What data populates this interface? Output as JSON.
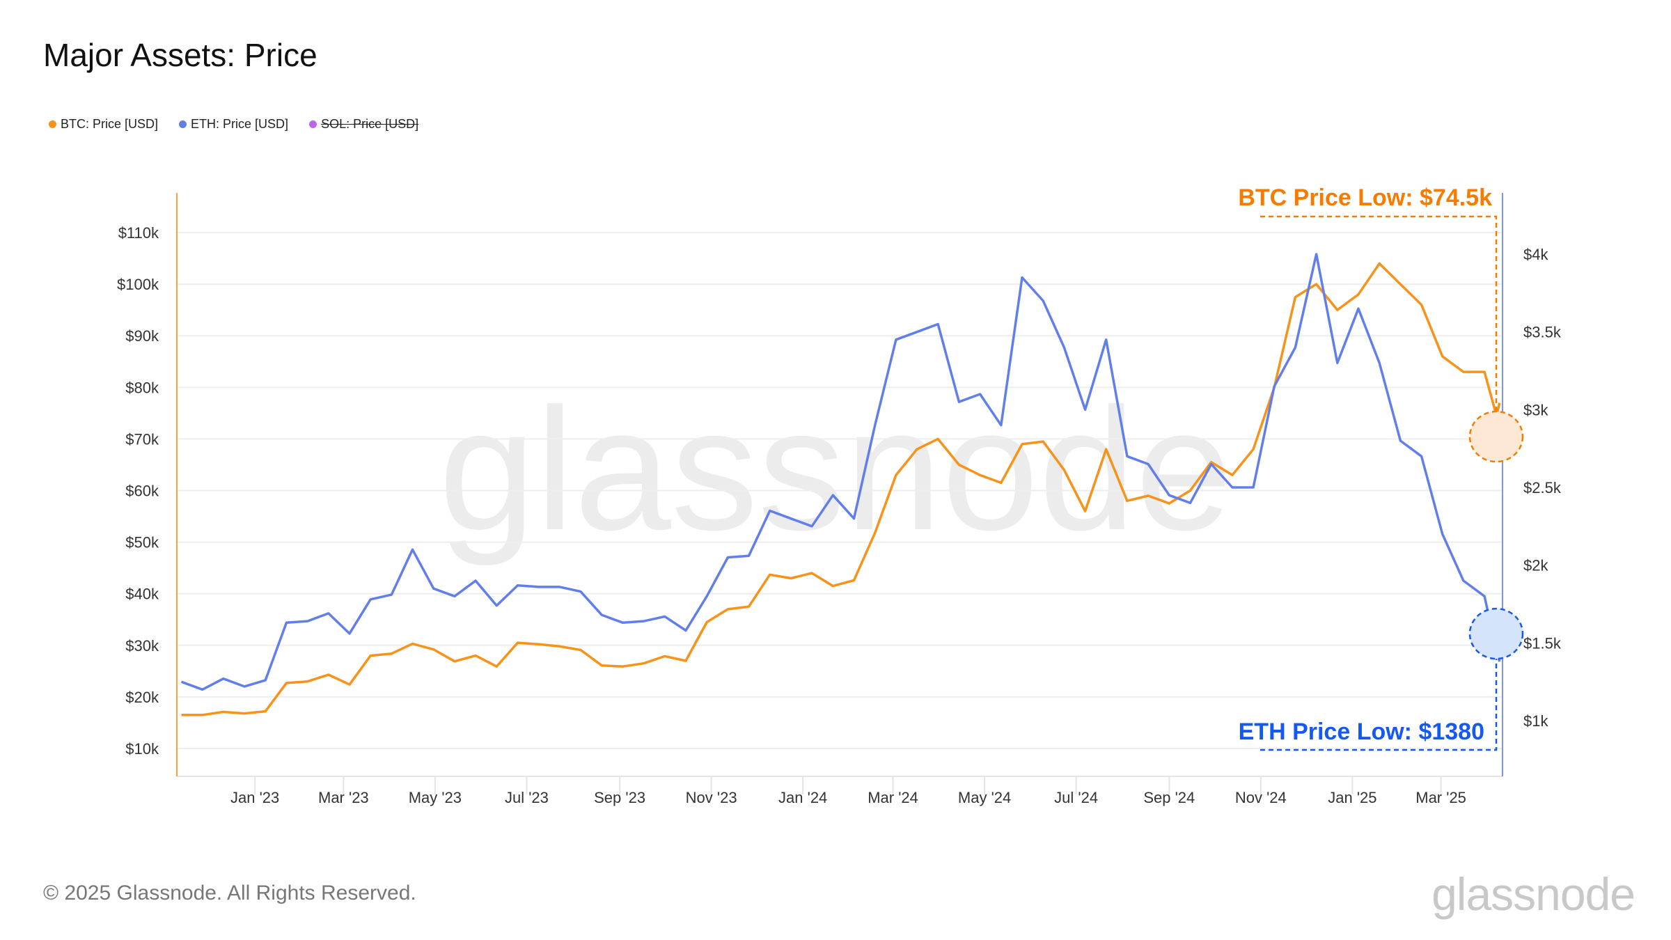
{
  "title": "Major Assets: Price",
  "legend": [
    {
      "label": "BTC: Price [USD]",
      "color": "#F7931A",
      "hidden": false
    },
    {
      "label": "ETH: Price [USD]",
      "color": "#627EEA",
      "hidden": false
    },
    {
      "label": "SOL: Price [USD]",
      "color": "#C063E8",
      "hidden": true
    }
  ],
  "watermark": "glassnode",
  "footer": "© 2025 Glassnode. All Rights Reserved.",
  "logo": "glassnode",
  "chart_data": {
    "type": "line",
    "title": "Major Assets: Price",
    "grid": true,
    "legend_position": "top-left",
    "x_range": [
      "2022-11-10",
      "2025-04-11"
    ],
    "x_ticks": [
      "Jan '23",
      "Mar '23",
      "May '23",
      "Jul '23",
      "Sep '23",
      "Nov '23",
      "Jan '24",
      "Mar '24",
      "May '24",
      "Jul '24",
      "Sep '24",
      "Nov '24",
      "Jan '25",
      "Mar '25"
    ],
    "x_tick_dates": [
      "2023-01-01",
      "2023-03-01",
      "2023-05-01",
      "2023-07-01",
      "2023-09-01",
      "2023-11-01",
      "2024-01-01",
      "2024-03-01",
      "2024-05-01",
      "2024-07-01",
      "2024-09-01",
      "2024-11-01",
      "2025-01-01",
      "2025-03-01"
    ],
    "y_left": {
      "range": [
        6000,
        114000
      ],
      "ticks": [
        10000,
        20000,
        30000,
        40000,
        50000,
        60000,
        70000,
        80000,
        90000,
        100000,
        110000
      ],
      "tick_labels": [
        "$10k",
        "$20k",
        "$30k",
        "$40k",
        "$50k",
        "$60k",
        "$70k",
        "$80k",
        "$90k",
        "$100k",
        "$110k"
      ],
      "color": "#F7931A"
    },
    "y_right": {
      "range": [
        750,
        4300
      ],
      "ticks": [
        1000,
        1500,
        2000,
        2500,
        3000,
        3500,
        4000
      ],
      "tick_labels": [
        "$1k",
        "$1.5k",
        "$2k",
        "$2.5k",
        "$3k",
        "$3.5k",
        "$4k"
      ],
      "color": "#627EEA"
    },
    "dates": [
      "2022-11-13",
      "2022-11-27",
      "2022-12-11",
      "2022-12-25",
      "2023-01-08",
      "2023-01-22",
      "2023-02-05",
      "2023-02-19",
      "2023-03-05",
      "2023-03-19",
      "2023-04-02",
      "2023-04-16",
      "2023-04-30",
      "2023-05-14",
      "2023-05-28",
      "2023-06-11",
      "2023-06-25",
      "2023-07-09",
      "2023-07-23",
      "2023-08-06",
      "2023-08-20",
      "2023-09-03",
      "2023-09-17",
      "2023-10-01",
      "2023-10-15",
      "2023-10-29",
      "2023-11-12",
      "2023-11-26",
      "2023-12-10",
      "2023-12-24",
      "2024-01-07",
      "2024-01-21",
      "2024-02-04",
      "2024-02-18",
      "2024-03-03",
      "2024-03-17",
      "2024-03-31",
      "2024-04-14",
      "2024-04-28",
      "2024-05-12",
      "2024-05-26",
      "2024-06-09",
      "2024-06-23",
      "2024-07-07",
      "2024-07-21",
      "2024-08-04",
      "2024-08-18",
      "2024-09-01",
      "2024-09-15",
      "2024-09-29",
      "2024-10-13",
      "2024-10-27",
      "2024-11-10",
      "2024-11-24",
      "2024-12-08",
      "2024-12-22",
      "2025-01-05",
      "2025-01-19",
      "2025-02-02",
      "2025-02-16",
      "2025-03-02",
      "2025-03-16",
      "2025-03-30",
      "2025-04-07",
      "2025-04-09"
    ],
    "series": [
      {
        "name": "BTC: Price [USD]",
        "axis": "left",
        "color": "#F7931A",
        "values": [
          16500,
          16500,
          17100,
          16800,
          17200,
          22700,
          23000,
          24300,
          22400,
          28000,
          28400,
          30300,
          29200,
          26900,
          28000,
          25900,
          30500,
          30200,
          29800,
          29100,
          26100,
          25900,
          26500,
          27900,
          27000,
          34500,
          37000,
          37500,
          43700,
          43000,
          44000,
          41500,
          42600,
          51800,
          63000,
          68000,
          70000,
          65000,
          63000,
          61500,
          69000,
          69500,
          64000,
          56000,
          68000,
          58000,
          59000,
          57500,
          60000,
          65500,
          63000,
          68000,
          80000,
          97500,
          100000,
          95000,
          98000,
          104000,
          100000,
          96000,
          86000,
          83000,
          83000,
          74500,
          77000
        ]
      },
      {
        "name": "ETH: Price [USD]",
        "axis": "right",
        "color": "#627EEA",
        "values": [
          1250,
          1200,
          1270,
          1220,
          1260,
          1630,
          1640,
          1690,
          1560,
          1780,
          1810,
          2100,
          1850,
          1800,
          1900,
          1740,
          1870,
          1860,
          1860,
          1830,
          1680,
          1630,
          1640,
          1670,
          1580,
          1800,
          2050,
          2060,
          2350,
          2300,
          2250,
          2450,
          2300,
          2900,
          3450,
          3500,
          3550,
          3050,
          3100,
          2900,
          3850,
          3700,
          3400,
          3000,
          3450,
          2700,
          2650,
          2450,
          2400,
          2650,
          2500,
          2500,
          3150,
          3400,
          4000,
          3300,
          3650,
          3300,
          2800,
          2700,
          2200,
          1900,
          1800,
          1450,
          1380
        ]
      }
    ],
    "annotations": [
      {
        "text": "BTC Price Low: $74.5k",
        "series": "BTC: Price [USD]",
        "value": 74500,
        "color": "#F57C00",
        "fill": "#FDE8D6"
      },
      {
        "text": "ETH Price Low: $1380",
        "series": "ETH: Price [USD]",
        "value": 1380,
        "color": "#1559F0",
        "fill": "#D6E4FB"
      }
    ]
  }
}
